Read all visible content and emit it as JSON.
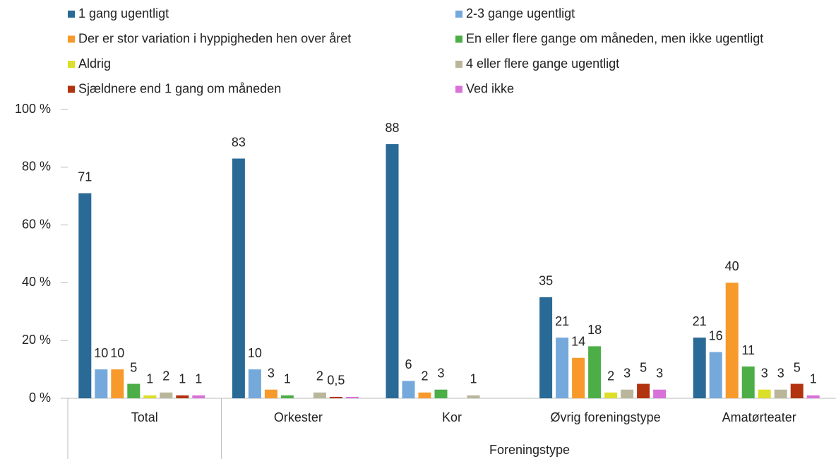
{
  "chart_data": {
    "type": "bar",
    "categories": [
      "Total",
      "Orkester",
      "Kor",
      "Øvrig foreningstype",
      "Amatørteater"
    ],
    "x_label": "Foreningstype",
    "ylim": [
      0,
      100
    ],
    "yticks": [
      {
        "value": 0,
        "label": "0 %"
      },
      {
        "value": 20,
        "label": "20 %"
      },
      {
        "value": 40,
        "label": "40 %"
      },
      {
        "value": 60,
        "label": "60 %"
      },
      {
        "value": 80,
        "label": "80 %"
      },
      {
        "value": 100,
        "label": "100 %"
      }
    ],
    "series": [
      {
        "name": "1 gang ugentligt",
        "color": "#2a6a96",
        "values": [
          71,
          83,
          88,
          35,
          21
        ]
      },
      {
        "name": "2-3 gange ugentligt",
        "color": "#75a9db",
        "values": [
          10,
          10,
          6,
          21,
          16
        ]
      },
      {
        "name": "Der er stor variation i hyppigheden hen over året",
        "color": "#f79a2b",
        "values": [
          10,
          3,
          2,
          14,
          40
        ]
      },
      {
        "name": "En eller flere gange om måneden, men ikke ugentligt",
        "color": "#4cae47",
        "values": [
          5,
          1,
          3,
          18,
          11
        ]
      },
      {
        "name": "Aldrig",
        "color": "#dcdf29",
        "values": [
          1,
          null,
          null,
          2,
          3
        ]
      },
      {
        "name": "4 eller flere gange ugentligt",
        "color": "#bab69b",
        "values": [
          2,
          2,
          1,
          3,
          3
        ]
      },
      {
        "name": "Sjældnere end 1 gang om måneden",
        "color": "#b2330f",
        "values": [
          1,
          0.5,
          null,
          5,
          5
        ],
        "value_labels": [
          "1",
          "0,5",
          null,
          "5",
          "5"
        ]
      },
      {
        "name": "Ved ikke",
        "color": "#d872d8",
        "values": [
          1,
          0.5,
          null,
          3,
          1
        ],
        "value_labels": [
          "1",
          null,
          null,
          "3",
          "1"
        ]
      }
    ]
  }
}
